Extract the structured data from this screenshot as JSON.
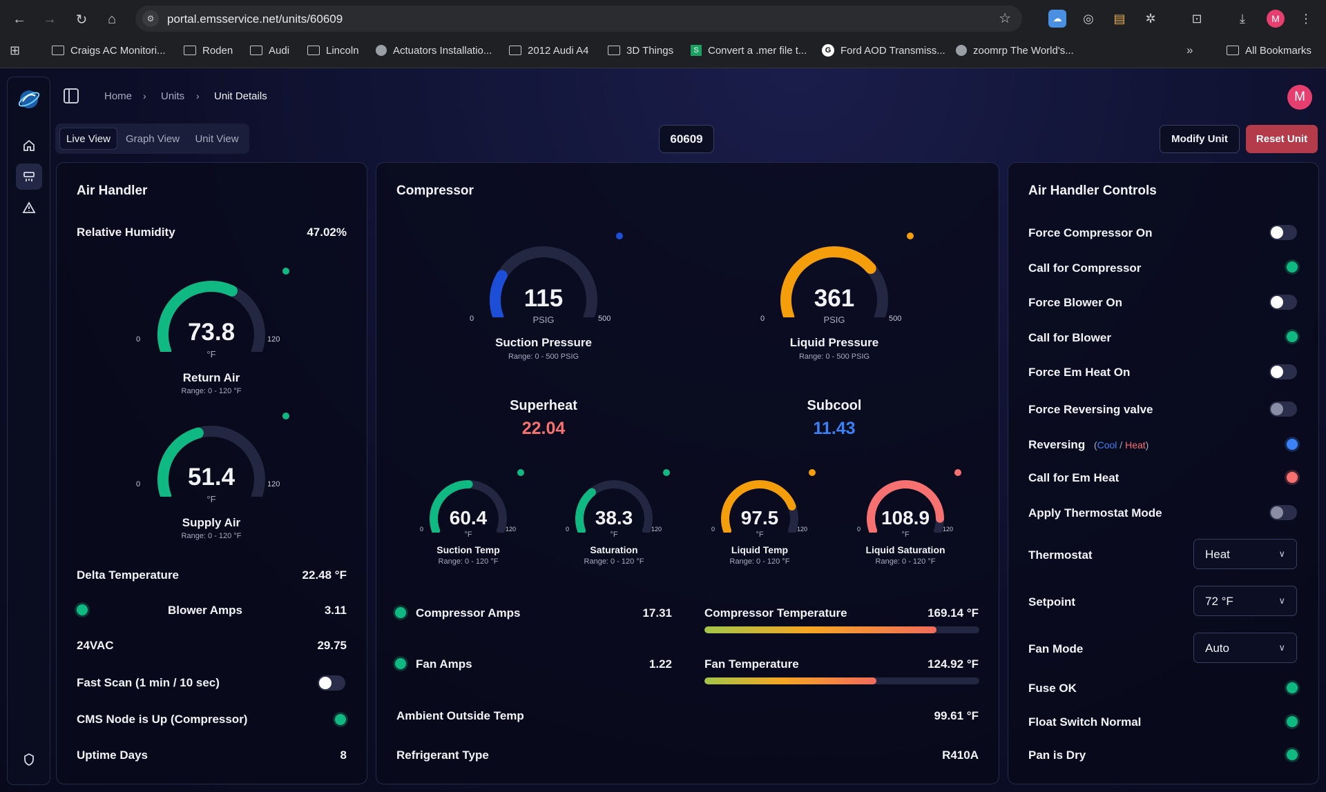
{
  "browser": {
    "url": "portal.emsservice.net/units/60609",
    "bookmarks": [
      "Craigs AC Monitori...",
      "Roden",
      "Audi",
      "Lincoln",
      "Actuators Installatio...",
      "2012 Audi A4",
      "3D Things",
      "Convert a .mer file t...",
      "Ford AOD Transmiss...",
      "zoomrp The World's...",
      "All Bookmarks"
    ],
    "profile_initial": "M"
  },
  "breadcrumb": {
    "home": "Home",
    "units": "Units",
    "current": "Unit Details"
  },
  "user_initial": "M",
  "tabs": [
    "Live View",
    "Graph View",
    "Unit View"
  ],
  "unit_number": "60609",
  "actions": {
    "modify": "Modify Unit",
    "reset": "Reset Unit"
  },
  "air_handler": {
    "title": "Air Handler",
    "humidity_label": "Relative Humidity",
    "humidity_value": "47.02%",
    "return_air": {
      "value": "73.8",
      "unit": "°F",
      "name": "Return Air",
      "range": "Range: 0 - 120 °F",
      "min": "0",
      "max": "120",
      "pct": 0.615
    },
    "supply_air": {
      "value": "51.4",
      "unit": "°F",
      "name": "Supply Air",
      "range": "Range: 0 - 120 °F",
      "min": "0",
      "max": "120",
      "pct": 0.428
    },
    "delta_label": "Delta Temperature",
    "delta_value": "22.48 °F",
    "blower_label": "Blower Amps",
    "blower_value": "3.11",
    "vac_label": "24VAC",
    "vac_value": "29.75",
    "fastscan_label": "Fast Scan (1 min / 10 sec)",
    "cms_label": "CMS Node is Up (Compressor)",
    "uptime_label": "Uptime Days",
    "uptime_value": "8"
  },
  "compressor": {
    "title": "Compressor",
    "suction_pressure": {
      "value": "115",
      "unit": "PSIG",
      "name": "Suction Pressure",
      "range": "Range: 0 - 500 PSIG",
      "min": "0",
      "max": "500",
      "pct": 0.23
    },
    "liquid_pressure": {
      "value": "361",
      "unit": "PSIG",
      "name": "Liquid Pressure",
      "range": "Range: 0 - 500 PSIG",
      "min": "0",
      "max": "500",
      "pct": 0.722
    },
    "superheat_label": "Superheat",
    "superheat_value": "22.04",
    "subcool_label": "Subcool",
    "subcool_value": "11.43",
    "suction_temp": {
      "value": "60.4",
      "unit": "°F",
      "name": "Suction Temp",
      "range": "Range: 0 - 120 °F",
      "min": "0",
      "max": "120",
      "pct": 0.503
    },
    "saturation": {
      "value": "38.3",
      "unit": "°F",
      "name": "Saturation",
      "range": "Range: 0 - 120 °F",
      "min": "0",
      "max": "120",
      "pct": 0.319
    },
    "liquid_temp": {
      "value": "97.5",
      "unit": "°F",
      "name": "Liquid Temp",
      "range": "Range: 0 - 120 °F",
      "min": "0",
      "max": "120",
      "pct": 0.8125
    },
    "liquid_saturation": {
      "value": "108.9",
      "unit": "°F",
      "name": "Liquid Saturation",
      "range": "Range: 0 - 120 °F",
      "min": "0",
      "max": "120",
      "pct": 0.9075
    },
    "comp_amps_label": "Compressor Amps",
    "comp_amps_value": "17.31",
    "fan_amps_label": "Fan Amps",
    "fan_amps_value": "1.22",
    "comp_temp_label": "Compressor Temperature",
    "comp_temp_value": "169.14 °F",
    "comp_temp_fill": 0.845,
    "fan_temp_label": "Fan Temperature",
    "fan_temp_value": "124.92 °F",
    "fan_temp_fill": 0.625,
    "ambient_label": "Ambient Outside Temp",
    "ambient_value": "99.61 °F",
    "refrigerant_label": "Refrigerant Type",
    "refrigerant_value": "R410A"
  },
  "controls": {
    "title": "Air Handler Controls",
    "items": {
      "force_comp": "Force Compressor On",
      "call_comp": "Call for Compressor",
      "force_blower": "Force Blower On",
      "call_blower": "Call for Blower",
      "force_em": "Force Em Heat On",
      "force_rev": "Force Reversing valve",
      "reversing": "Reversing",
      "rev_cool": "Cool",
      "rev_sep": "/",
      "rev_heat": "Heat",
      "call_em": "Call for Em Heat",
      "apply_mode": "Apply Thermostat Mode",
      "thermostat": "Thermostat",
      "thermostat_value": "Heat",
      "setpoint": "Setpoint",
      "setpoint_value": "72 °F",
      "fan_mode": "Fan Mode",
      "fan_mode_value": "Auto",
      "fuse": "Fuse OK",
      "float": "Float Switch Normal",
      "pan": "Pan is Dry"
    }
  },
  "colors": {
    "green": "#10b981",
    "orange": "#f59e0b",
    "red": "#f87171",
    "blue": "#1d4ed8",
    "superheat": "#f87171",
    "subcool": "#3b82f6"
  }
}
